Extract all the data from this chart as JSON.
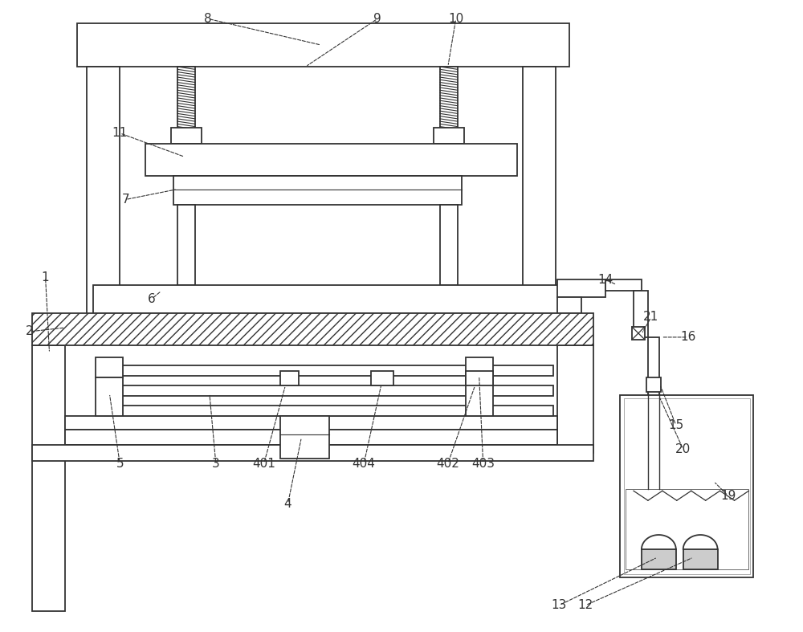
{
  "bg_color": "#ffffff",
  "line_color": "#333333",
  "fig_width": 10.0,
  "fig_height": 7.87,
  "lw": 1.3
}
